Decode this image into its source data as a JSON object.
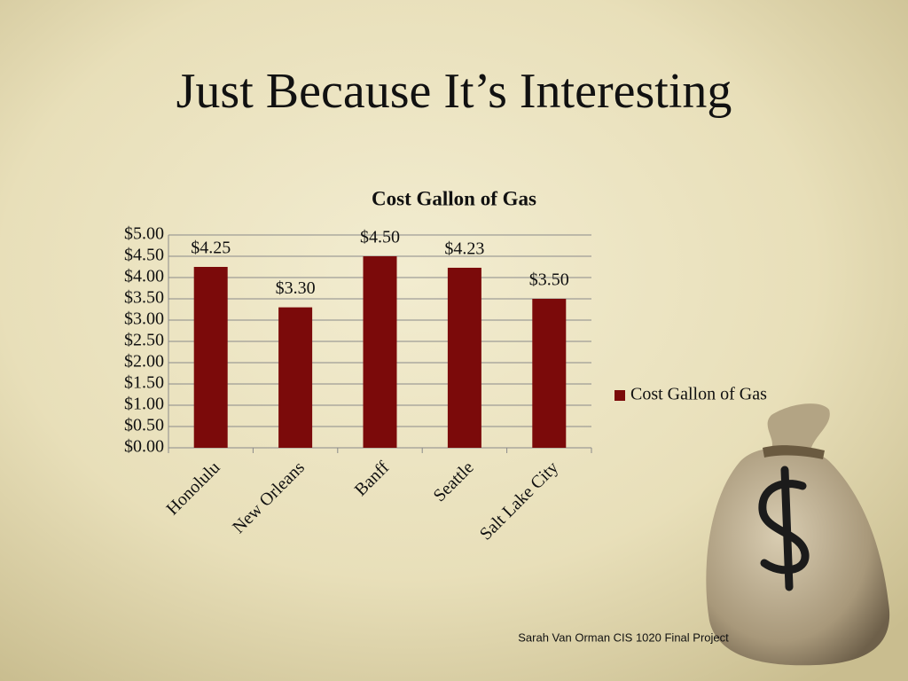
{
  "title": "Just Because It’s Interesting",
  "footer": "Sarah Van Orman CIS 1020 Final Project",
  "chart_data": {
    "type": "bar",
    "title": "Cost Gallon of Gas",
    "categories": [
      "Honolulu",
      "New Orleans",
      "Banff",
      "Seattle",
      "Salt Lake City"
    ],
    "series": [
      {
        "name": "Cost Gallon of Gas",
        "color": "#7b0a0a",
        "values": [
          4.25,
          3.3,
          4.5,
          4.23,
          3.5
        ],
        "value_labels": [
          "$4.25",
          "$3.30",
          "$4.50",
          "$4.23",
          "$3.50"
        ]
      }
    ],
    "ylim": [
      0,
      5
    ],
    "yticks": [
      {
        "value": 0,
        "label": "$0.00"
      },
      {
        "value": 0.5,
        "label": "$0.50"
      },
      {
        "value": 1,
        "label": "$1.00"
      },
      {
        "value": 1.5,
        "label": "$1.50"
      },
      {
        "value": 2,
        "label": "$2.00"
      },
      {
        "value": 2.5,
        "label": "$2.50"
      },
      {
        "value": 3,
        "label": "$3.00"
      },
      {
        "value": 3.5,
        "label": "$3.50"
      },
      {
        "value": 4,
        "label": "$4.00"
      },
      {
        "value": 4.5,
        "label": "$4.50"
      },
      {
        "value": 5,
        "label": "$5.00"
      }
    ],
    "grid": true,
    "legend": "right"
  }
}
